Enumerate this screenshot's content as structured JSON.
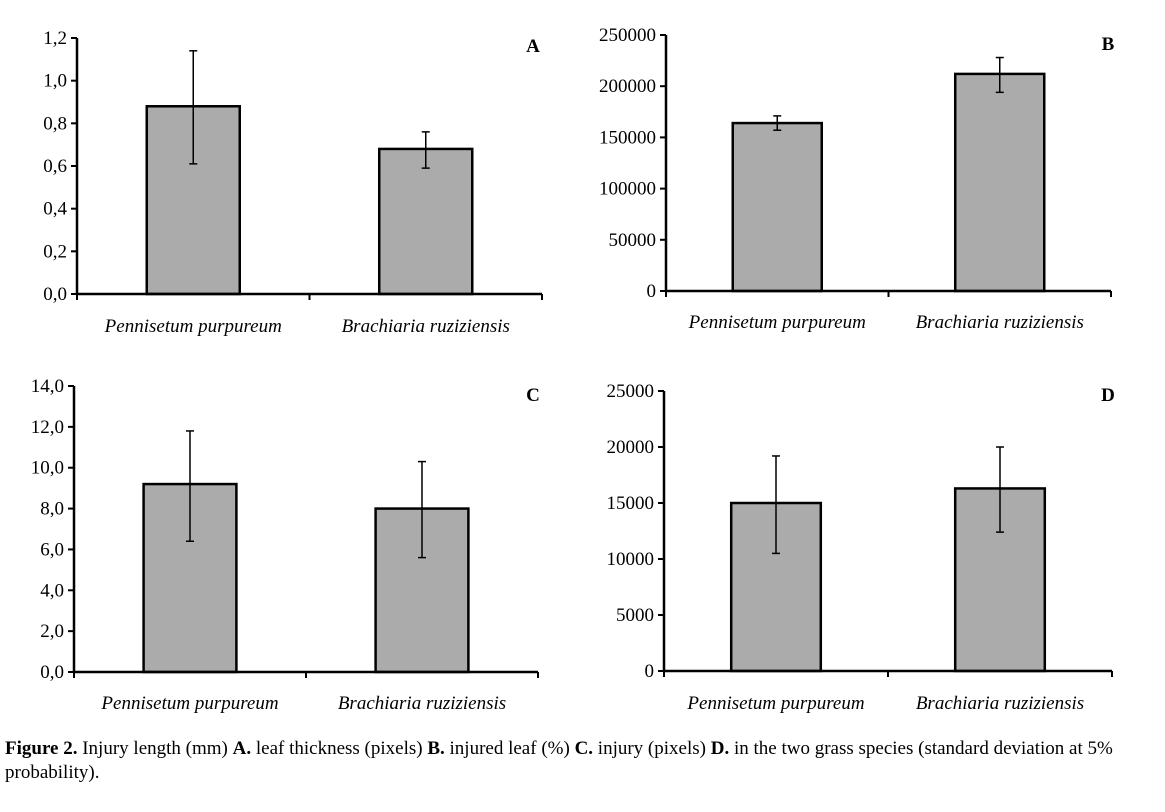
{
  "chart_data": [
    {
      "type": "bar",
      "panel_label": "A",
      "categories": [
        "Pennisetum purpureum",
        "Brachiaria ruziziensis"
      ],
      "values": [
        0.88,
        0.68
      ],
      "error_low": [
        0.61,
        0.59
      ],
      "error_high": [
        1.14,
        0.76
      ],
      "ylim": [
        0,
        1.2
      ],
      "yticks": [
        0,
        0.2,
        0.4,
        0.6,
        0.8,
        1.0,
        1.2
      ],
      "ytick_labels": [
        "0,0",
        "0,2",
        "0,4",
        "0,6",
        "0,8",
        "1,0",
        "1,2"
      ],
      "xlabel": "",
      "ylabel": "",
      "title": "",
      "grid": false,
      "bar_color": "#ababab"
    },
    {
      "type": "bar",
      "panel_label": "B",
      "categories": [
        "Pennisetum purpureum",
        "Brachiaria ruziziensis"
      ],
      "values": [
        164000,
        212000
      ],
      "error_low": [
        157000,
        194000
      ],
      "error_high": [
        171000,
        228000
      ],
      "ylim": [
        0,
        250000
      ],
      "yticks": [
        0,
        50000,
        100000,
        150000,
        200000,
        250000
      ],
      "ytick_labels": [
        "0",
        "50000",
        "100000",
        "150000",
        "200000",
        "250000"
      ],
      "xlabel": "",
      "ylabel": "",
      "title": "",
      "grid": false,
      "bar_color": "#ababab"
    },
    {
      "type": "bar",
      "panel_label": "C",
      "categories": [
        "Pennisetum purpureum",
        "Brachiaria ruziziensis"
      ],
      "values": [
        9.2,
        8.0
      ],
      "error_low": [
        6.4,
        5.6
      ],
      "error_high": [
        11.8,
        10.3
      ],
      "ylim": [
        0,
        14
      ],
      "yticks": [
        0,
        2,
        4,
        6,
        8,
        10,
        12,
        14
      ],
      "ytick_labels": [
        "0,0",
        "2,0",
        "4,0",
        "6,0",
        "8,0",
        "10,0",
        "12,0",
        "14,0"
      ],
      "xlabel": "",
      "ylabel": "",
      "title": "",
      "grid": false,
      "bar_color": "#ababab"
    },
    {
      "type": "bar",
      "panel_label": "D",
      "categories": [
        "Pennisetum purpureum",
        "Brachiaria ruziziensis"
      ],
      "values": [
        15000,
        16300
      ],
      "error_low": [
        10500,
        12400
      ],
      "error_high": [
        19200,
        20000
      ],
      "ylim": [
        0,
        25000
      ],
      "yticks": [
        0,
        5000,
        10000,
        15000,
        20000,
        25000
      ],
      "ytick_labels": [
        "0",
        "5000",
        "10000",
        "15000",
        "20000",
        "25000"
      ],
      "xlabel": "",
      "ylabel": "",
      "title": "",
      "grid": false,
      "bar_color": "#ababab"
    }
  ],
  "caption": {
    "figure_label": "Figure 2.",
    "part1": " Injury length (mm) ",
    "a": "A.",
    "part2": " leaf thickness (pixels) ",
    "b": "B.",
    "part3": " injured leaf (%) ",
    "c": "C.",
    "part4": " injury (pixels) ",
    "d": "D.",
    "part5": " in the two grass species (standard deviation at 5% probability)."
  }
}
